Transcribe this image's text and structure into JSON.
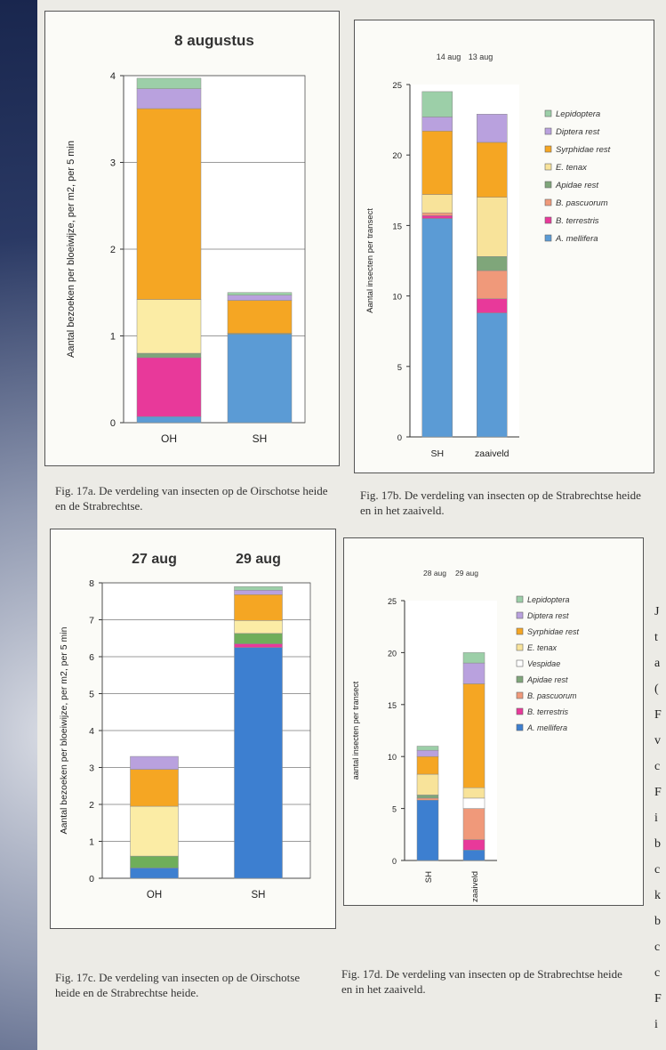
{
  "chart_data": [
    {
      "id": "17a",
      "type": "bar",
      "stacked": true,
      "title": "8 augustus",
      "ylabel": "Aantal bezoeken per bloeiwijze, per m2, per 5 min",
      "ylim": [
        0,
        4
      ],
      "yticks": [
        "0",
        "1",
        "2",
        "3",
        "4"
      ],
      "grid": true,
      "categories": [
        "OH",
        "SH"
      ],
      "series": [
        {
          "color": "#5b9bd5",
          "values": [
            0.07,
            1.02
          ]
        },
        {
          "color": "#e8399a",
          "values": [
            0.68,
            0
          ]
        },
        {
          "color": "#7fa67a",
          "values": [
            0.05,
            0.01
          ]
        },
        {
          "color": "#fbeca5",
          "values": [
            0.62,
            0
          ]
        },
        {
          "color": "#f5a623",
          "values": [
            2.2,
            0.38
          ]
        },
        {
          "color": "#b9a1de",
          "values": [
            0.23,
            0.06
          ]
        },
        {
          "color": "#9ccfa8",
          "values": [
            0.12,
            0.03
          ]
        }
      ],
      "caption": "Fig. 17a. De verdeling van insecten op de Oirschotse heide en de Strabrechtse."
    },
    {
      "id": "17b",
      "type": "bar",
      "stacked": true,
      "top_labels": [
        "14 aug",
        "13 aug"
      ],
      "ylabel": "Aantal insecten per transect",
      "ylim": [
        0,
        25
      ],
      "yticks": [
        "0",
        "5",
        "10",
        "15",
        "20",
        "25"
      ],
      "grid": false,
      "categories": [
        "SH",
        "zaaiveld"
      ],
      "legend": [
        {
          "label": "Lepidoptera",
          "color": "#9ccfa8"
        },
        {
          "label": "Diptera rest",
          "color": "#b9a1de"
        },
        {
          "label": "Syrphidae rest",
          "color": "#f5a623"
        },
        {
          "label": "E. tenax",
          "color": "#f8e39a"
        },
        {
          "label": "Apidae rest",
          "color": "#7fa67a"
        },
        {
          "label": "B. pascuorum",
          "color": "#f0997a"
        },
        {
          "label": "B. terrestris",
          "color": "#e8399a"
        },
        {
          "label": "A. mellifera",
          "color": "#5b9bd5"
        }
      ],
      "series": [
        {
          "name": "A. mellifera",
          "color": "#5b9bd5",
          "values": [
            15.5,
            8.8
          ]
        },
        {
          "name": "B. terrestris",
          "color": "#e8399a",
          "values": [
            0.2,
            1.0
          ]
        },
        {
          "name": "B. pascuorum",
          "color": "#f0997a",
          "values": [
            0.2,
            2.0
          ]
        },
        {
          "name": "Apidae rest",
          "color": "#7fa67a",
          "values": [
            0,
            1.0
          ]
        },
        {
          "name": "E. tenax",
          "color": "#f8e39a",
          "values": [
            1.3,
            4.2
          ]
        },
        {
          "name": "Syrphidae rest",
          "color": "#f5a623",
          "values": [
            4.5,
            3.9
          ]
        },
        {
          "name": "Diptera rest",
          "color": "#b9a1de",
          "values": [
            1.0,
            2.0
          ]
        },
        {
          "name": "Lepidoptera",
          "color": "#9ccfa8",
          "values": [
            1.8,
            0
          ]
        }
      ],
      "caption": "Fig. 17b. De verdeling van insecten op de Strabrechtse heide en in het zaaiveld."
    },
    {
      "id": "17c",
      "type": "bar",
      "stacked": true,
      "top_labels": [
        "27 aug",
        "29 aug"
      ],
      "ylabel": "Aantal bezoeken per bloeiwijze, per m2, per 5 min",
      "ylim": [
        0,
        8
      ],
      "yticks": [
        "0",
        "1",
        "2",
        "3",
        "4",
        "5",
        "6",
        "7",
        "8"
      ],
      "grid": true,
      "categories": [
        "OH",
        "SH"
      ],
      "series": [
        {
          "color": "#3d7fd0",
          "values": [
            0.28,
            6.25
          ]
        },
        {
          "color": "#e8399a",
          "values": [
            0,
            0.1
          ]
        },
        {
          "color": "#6fae5a",
          "values": [
            0.32,
            0.28
          ]
        },
        {
          "color": "#fbeca5",
          "values": [
            1.35,
            0.35
          ]
        },
        {
          "color": "#f5a623",
          "values": [
            1.0,
            0.7
          ]
        },
        {
          "color": "#b9a1de",
          "values": [
            0.35,
            0.12
          ]
        },
        {
          "color": "#9ccfa8",
          "values": [
            0,
            0.1
          ]
        }
      ],
      "caption": "Fig. 17c. De verdeling van insecten op de Oirschotse heide en de Strabrechtse heide."
    },
    {
      "id": "17d",
      "type": "bar",
      "stacked": true,
      "top_labels": [
        "28 aug",
        "29 aug"
      ],
      "ylabel": "aantal insecten per transect",
      "ylim": [
        0,
        25
      ],
      "yticks": [
        "0",
        "5",
        "10",
        "15",
        "20",
        "25"
      ],
      "grid": false,
      "categories": [
        "SH",
        "zaaiveld"
      ],
      "legend": [
        {
          "label": "Lepidoptera",
          "color": "#9ccfa8"
        },
        {
          "label": "Diptera rest",
          "color": "#b9a1de"
        },
        {
          "label": "Syrphidae rest",
          "color": "#f5a623"
        },
        {
          "label": "E. tenax",
          "color": "#f8e39a"
        },
        {
          "label": "Vespidae",
          "color": "#ffffff"
        },
        {
          "label": "Apidae rest",
          "color": "#7fa67a"
        },
        {
          "label": "B. pascuorum",
          "color": "#f0997a"
        },
        {
          "label": "B. terrestris",
          "color": "#e8399a"
        },
        {
          "label": "A. mellifera",
          "color": "#3d7fd0"
        }
      ],
      "series": [
        {
          "name": "A. mellifera",
          "color": "#3d7fd0",
          "values": [
            5.8,
            1.0
          ]
        },
        {
          "name": "B. terrestris",
          "color": "#e8399a",
          "values": [
            0,
            1.0
          ]
        },
        {
          "name": "B. pascuorum",
          "color": "#f0997a",
          "values": [
            0.2,
            3.0
          ]
        },
        {
          "name": "Apidae rest",
          "color": "#7fa67a",
          "values": [
            0.3,
            0
          ]
        },
        {
          "name": "Vespidae",
          "color": "#ffffff",
          "values": [
            0,
            1.0
          ]
        },
        {
          "name": "E. tenax",
          "color": "#f8e39a",
          "values": [
            2.0,
            1.0
          ]
        },
        {
          "name": "Syrphidae rest",
          "color": "#f5a623",
          "values": [
            1.7,
            10.0
          ]
        },
        {
          "name": "Diptera rest",
          "color": "#b9a1de",
          "values": [
            0.6,
            2.0
          ]
        },
        {
          "name": "Lepidoptera",
          "color": "#9ccfa8",
          "values": [
            0.4,
            1.0
          ]
        }
      ],
      "caption": "Fig. 17d. De verdeling van insecten op de Strabrechtse heide en in het zaaiveld."
    }
  ],
  "side_text_fragments": [
    "J",
    "t",
    "a",
    "(",
    "F",
    "v",
    "c",
    "F",
    "i",
    "b",
    "c",
    "k",
    "b",
    "c",
    "c",
    "F",
    "i"
  ]
}
